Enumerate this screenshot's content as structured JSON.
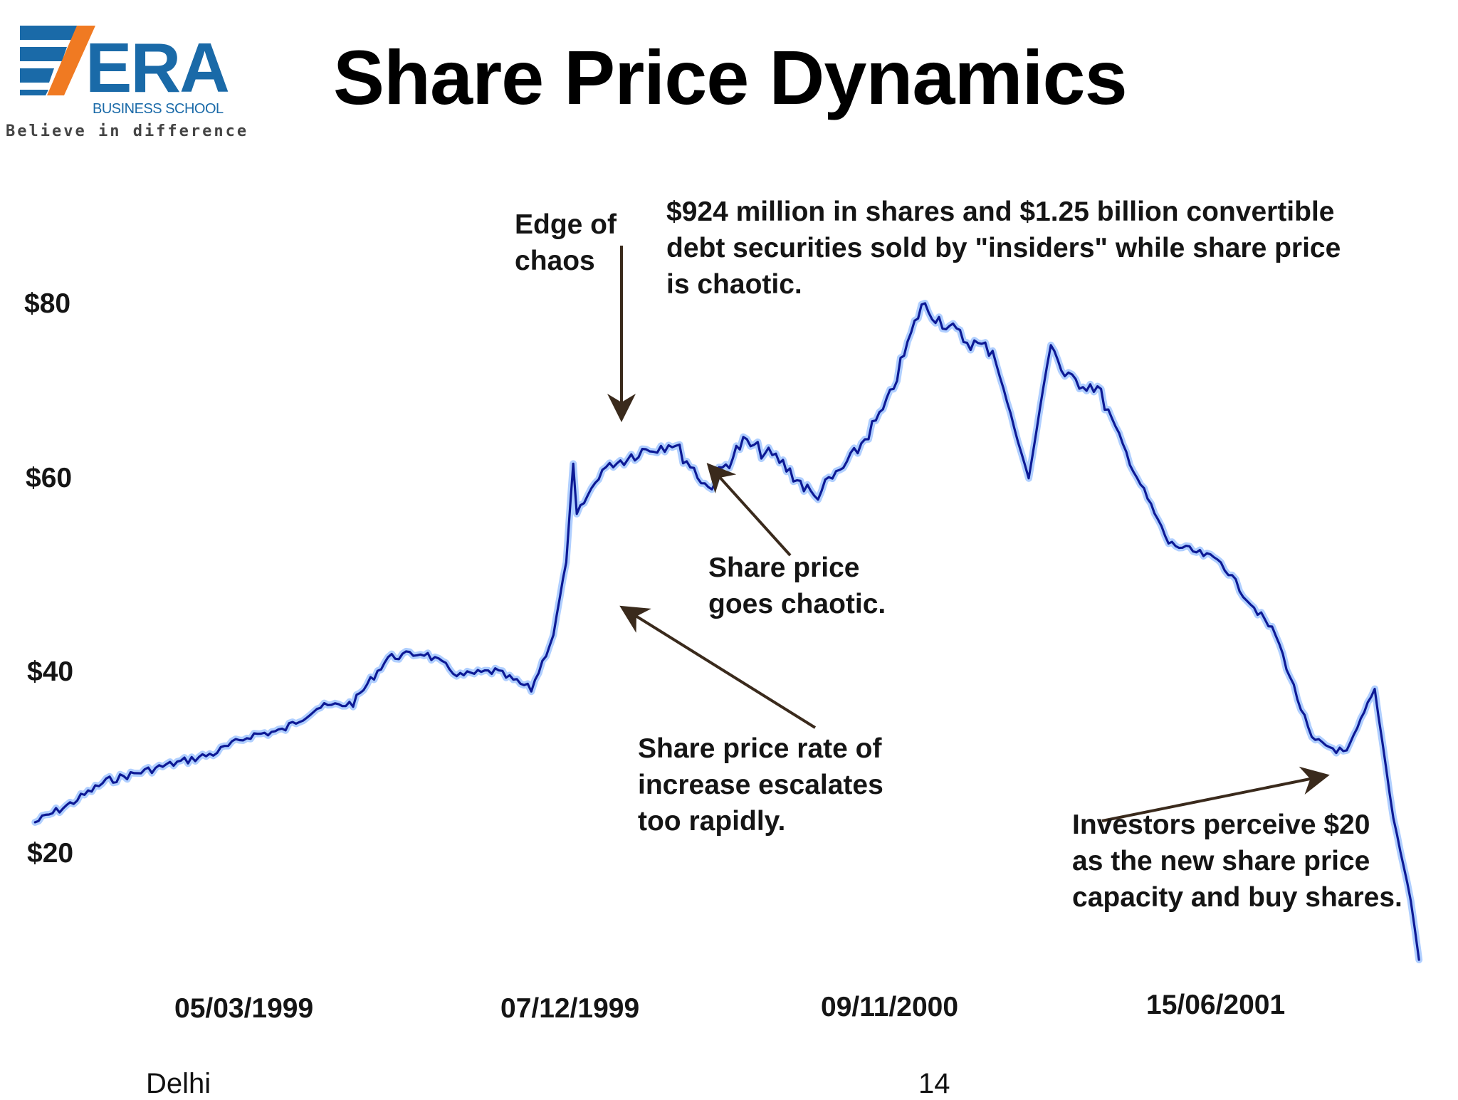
{
  "slide": {
    "title": "Share Price Dynamics",
    "logo": {
      "name": "ERA",
      "subtitle": "BUSINESS SCHOOL",
      "tagline": "Believe in difference",
      "color_blue": "#1a6aa8",
      "color_orange": "#f07a22"
    },
    "footer": {
      "left": "Delhi",
      "right": "14"
    }
  },
  "chart_data": {
    "type": "line",
    "title": "",
    "xlabel": "",
    "ylabel": "",
    "line_color": "#0d1a96",
    "glow_color": "#6fa8ff",
    "y_ticks": [
      {
        "label": "$80",
        "value": 80
      },
      {
        "label": "$60",
        "value": 60
      },
      {
        "label": "$40",
        "value": 40
      },
      {
        "label": "$20",
        "value": 20
      }
    ],
    "x_ticks": [
      "05/03/1999",
      "07/12/1999",
      "09/11/2000",
      "15/06/2001"
    ],
    "ylim": [
      0,
      88
    ],
    "series": [
      {
        "x": [
          "1998-09-01",
          "1998-10-01",
          "1998-11-01",
          "1998-12-01",
          "1999-01-01",
          "1999-02-01",
          "1999-03-05",
          "1999-04-01",
          "1999-05-01",
          "1999-06-01",
          "1999-07-01",
          "1999-08-01",
          "1999-09-01",
          "1999-10-01",
          "1999-11-01",
          "1999-11-20",
          "1999-12-01",
          "1999-12-07",
          "1999-12-10",
          "2000-01-01",
          "2000-02-01",
          "2000-03-01",
          "2000-04-01",
          "2000-05-01",
          "2000-06-01",
          "2000-07-01",
          "2000-08-01",
          "2000-09-01",
          "2000-10-01",
          "2000-11-09",
          "2000-12-01",
          "2001-01-01",
          "2001-01-20",
          "2001-02-01",
          "2001-03-01",
          "2001-04-01",
          "2001-05-01",
          "2001-06-15",
          "2001-07-01",
          "2001-08-01",
          "2001-09-01",
          "2001-10-01",
          "2001-10-25",
          "2001-11-10",
          "2001-11-25",
          "2001-12-02"
        ],
        "y": [
          23.5,
          25.5,
          28,
          29,
          30,
          31,
          33,
          33.5,
          36,
          36.5,
          41.5,
          42,
          39.5,
          40,
          38,
          44,
          52,
          62.5,
          57,
          62,
          64,
          65,
          60,
          65,
          63,
          59,
          63,
          69,
          80,
          76,
          75,
          61,
          76,
          72,
          71,
          62,
          54,
          52,
          49,
          44,
          32.5,
          31,
          38,
          24,
          15,
          8.5
        ]
      }
    ],
    "annotations": [
      {
        "text": "Edge of\nchaos"
      },
      {
        "text": "$924 million in shares and $1.25 billion convertible\ndebt securities sold by \"insiders\" while share price\nis chaotic."
      },
      {
        "text": "Share price\ngoes chaotic."
      },
      {
        "text": "Share price rate of\nincrease escalates\ntoo rapidly."
      },
      {
        "text": "Investors perceive $20\nas the new share price\ncapacity and buy shares."
      }
    ],
    "arrow_color": "#3a2a1c",
    "grid": false,
    "legend": "none"
  }
}
